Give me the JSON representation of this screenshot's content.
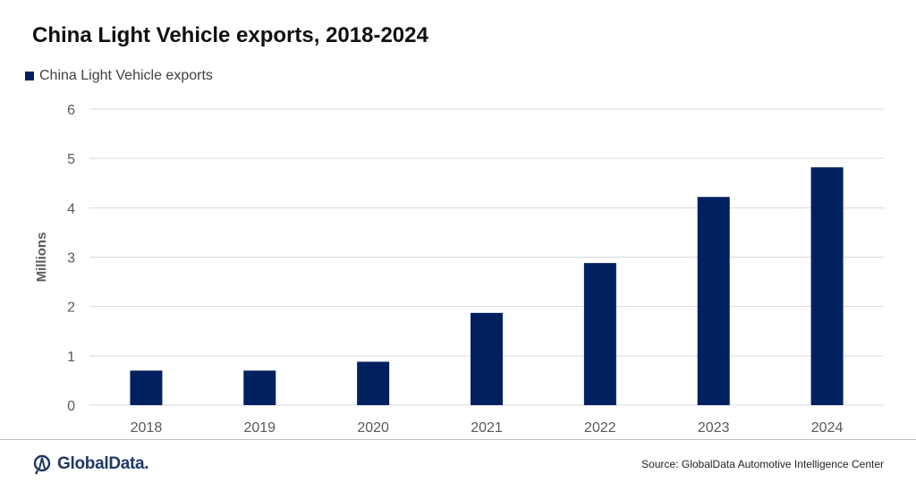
{
  "chart_data": {
    "type": "bar",
    "title": "China Light Vehicle exports, 2018-2024",
    "categories": [
      "2018",
      "2019",
      "2020",
      "2021",
      "2022",
      "2023",
      "2024"
    ],
    "series": [
      {
        "name": "China Light Vehicle exports",
        "values": [
          0.7,
          0.7,
          0.88,
          1.87,
          2.88,
          4.22,
          4.82
        ]
      }
    ],
    "xlabel": "",
    "ylabel": "Millions",
    "ylim": [
      0,
      6
    ],
    "yticks": [
      0,
      1,
      2,
      3,
      4,
      5,
      6
    ],
    "grid": true,
    "legend_position": "top-left",
    "colors": {
      "bar": "#002060",
      "grid": "#d9d9d9",
      "axis_text": "#595959"
    }
  },
  "brand": {
    "name": "GlobalData."
  },
  "source": "Source: GlobalData Automotive  Intelligence Center"
}
